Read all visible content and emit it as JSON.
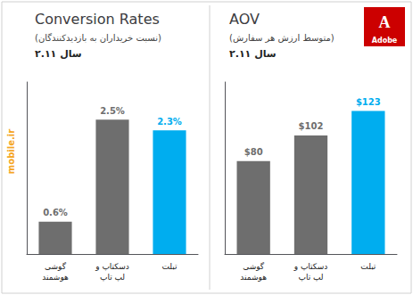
{
  "chart_data": [
    {
      "type": "bar",
      "title": "Conversion Rates",
      "subtitle": [
        "(نسبت خریداران به بازدیدکنندگان)",
        "سال ۲.۱۱"
      ],
      "categories": [
        "گوشی\nهوشمند",
        "دسکتاپ و\nلپ تاپ",
        "تبلت"
      ],
      "values": [
        0.6,
        2.5,
        2.3
      ],
      "value_labels": [
        "0.6%",
        "2.5%",
        "2.3%"
      ],
      "colors": [
        "#6e6e6e",
        "#6e6e6e",
        "#00adef"
      ],
      "ylim": [
        0,
        3.2
      ],
      "tick_labels": false,
      "data_labels": true,
      "annotations": [
        {
          "text": "mobile.ir",
          "color": "#f5a623"
        }
      ]
    },
    {
      "type": "bar",
      "title": "AOV",
      "subtitle": [
        "(متوسط ارزش هر سفارش)",
        "سال ۲.۱۱"
      ],
      "categories": [
        "گوشی\nهوشمند",
        "دسکتاپ و\nلپ تاپ",
        "تبلت"
      ],
      "values": [
        80,
        102,
        123
      ],
      "value_labels": [
        "$80",
        "$102",
        "$123"
      ],
      "colors": [
        "#6e6e6e",
        "#6e6e6e",
        "#00adef"
      ],
      "ylim": [
        0,
        148
      ],
      "tick_labels": false,
      "data_labels": true,
      "annotations": [
        {
          "text": "A"
        },
        {
          "text": "Adobe"
        }
      ]
    }
  ]
}
